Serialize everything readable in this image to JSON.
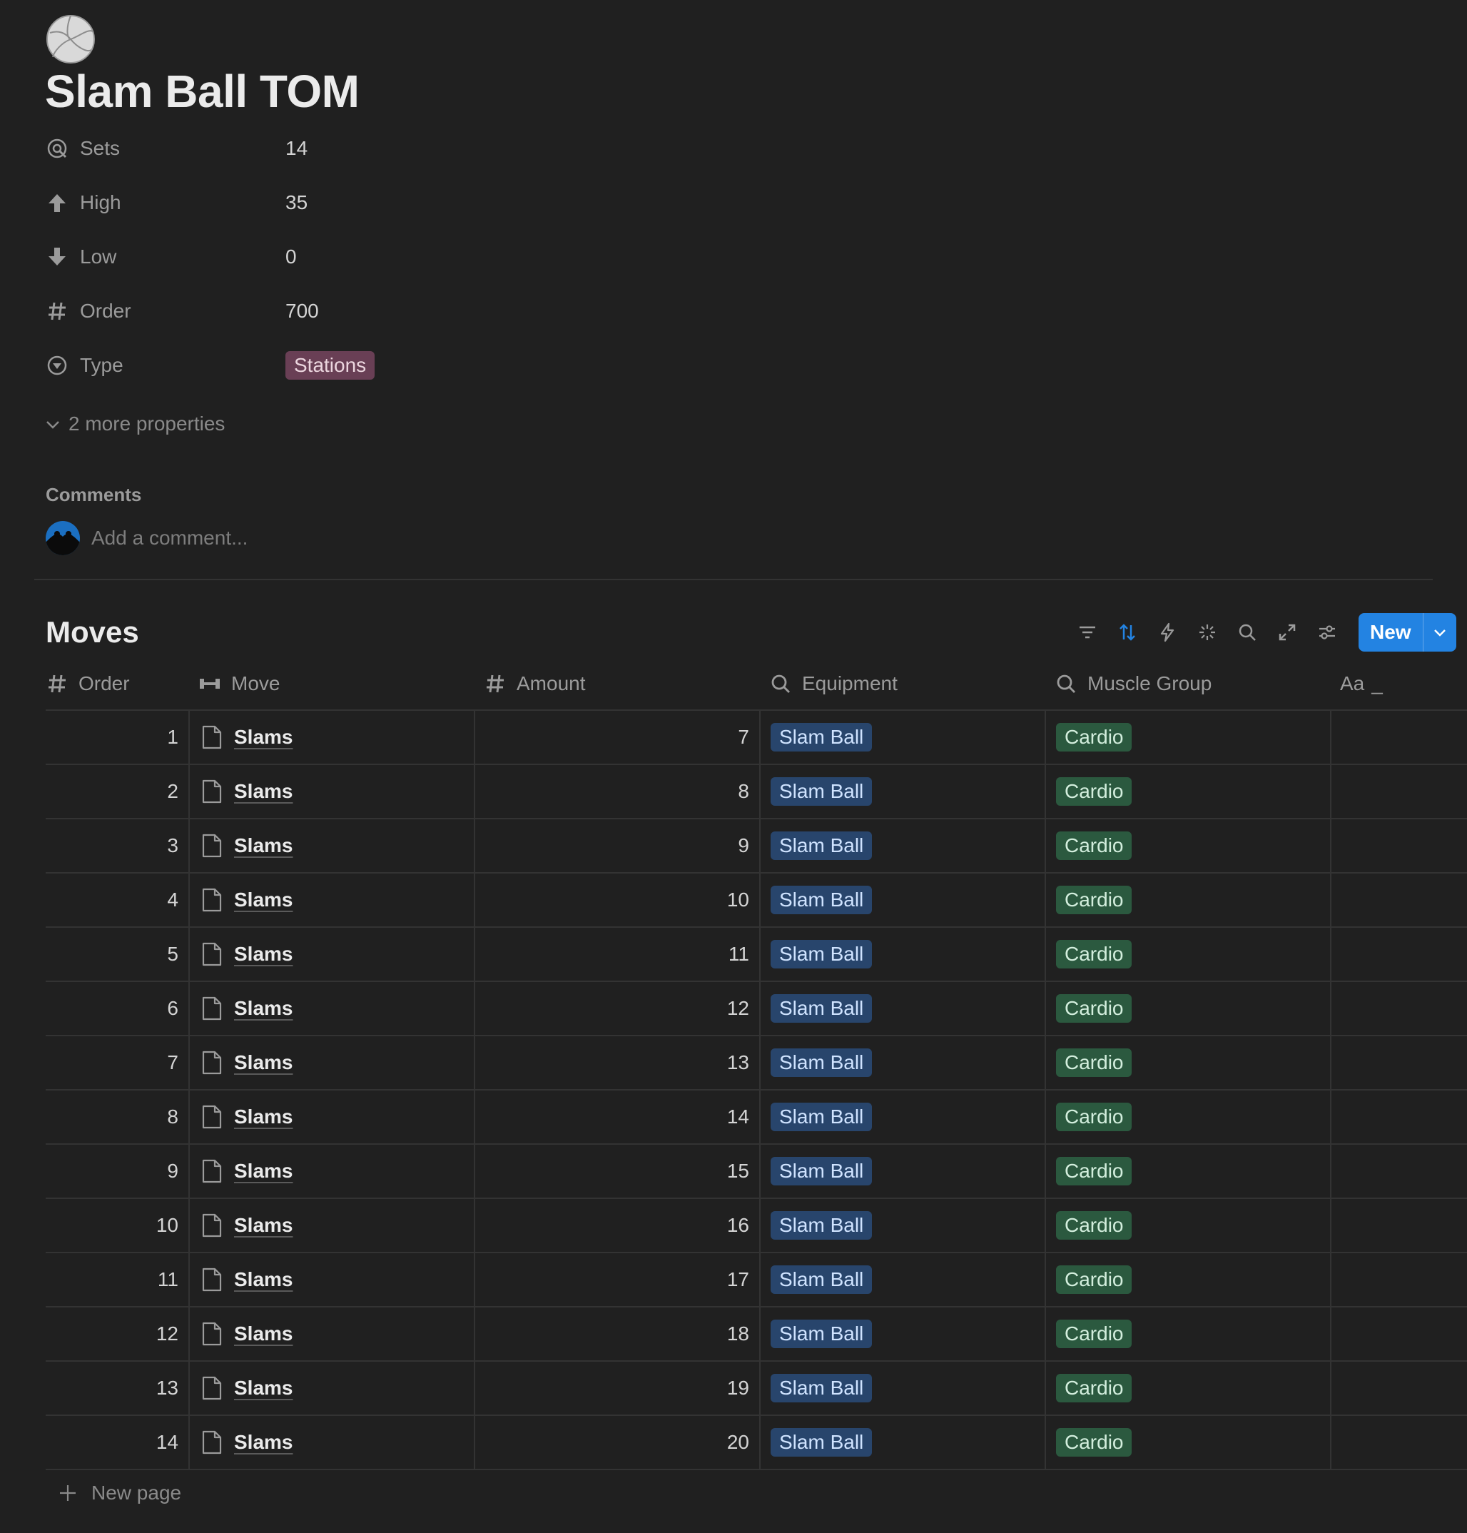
{
  "page": {
    "icon": "volleyball-icon",
    "title": "Slam Ball TOM"
  },
  "properties": [
    {
      "icon": "sets-icon",
      "name": "Sets",
      "value": "14"
    },
    {
      "icon": "arrow-up-icon",
      "name": "High",
      "value": "35"
    },
    {
      "icon": "arrow-down-icon",
      "name": "Low",
      "value": "0"
    },
    {
      "icon": "hash-icon",
      "name": "Order",
      "value": "700"
    },
    {
      "icon": "select-icon",
      "name": "Type",
      "value": "Stations"
    }
  ],
  "more_properties": "2 more properties",
  "comments": {
    "label": "Comments",
    "placeholder": "Add a comment..."
  },
  "database": {
    "title": "Moves",
    "new_label": "New",
    "toolbar_icons": [
      "filter-icon",
      "sort-icon",
      "automation-icon",
      "ai-icon",
      "search-icon",
      "expand-icon",
      "settings-icon"
    ],
    "columns": [
      {
        "icon": "hash-icon",
        "label": "Order"
      },
      {
        "icon": "relation-icon",
        "label": "Move"
      },
      {
        "icon": "hash-icon",
        "label": "Amount"
      },
      {
        "icon": "search-icon",
        "label": "Equipment"
      },
      {
        "icon": "search-icon",
        "label": "Muscle Group"
      },
      {
        "icon": "text-icon",
        "label": "Aa"
      }
    ],
    "rows": [
      {
        "order": "1",
        "move": "Slams",
        "amount": "7",
        "equipment": "Slam Ball",
        "muscle": "Cardio"
      },
      {
        "order": "2",
        "move": "Slams",
        "amount": "8",
        "equipment": "Slam Ball",
        "muscle": "Cardio"
      },
      {
        "order": "3",
        "move": "Slams",
        "amount": "9",
        "equipment": "Slam Ball",
        "muscle": "Cardio"
      },
      {
        "order": "4",
        "move": "Slams",
        "amount": "10",
        "equipment": "Slam Ball",
        "muscle": "Cardio"
      },
      {
        "order": "5",
        "move": "Slams",
        "amount": "11",
        "equipment": "Slam Ball",
        "muscle": "Cardio"
      },
      {
        "order": "6",
        "move": "Slams",
        "amount": "12",
        "equipment": "Slam Ball",
        "muscle": "Cardio"
      },
      {
        "order": "7",
        "move": "Slams",
        "amount": "13",
        "equipment": "Slam Ball",
        "muscle": "Cardio"
      },
      {
        "order": "8",
        "move": "Slams",
        "amount": "14",
        "equipment": "Slam Ball",
        "muscle": "Cardio"
      },
      {
        "order": "9",
        "move": "Slams",
        "amount": "15",
        "equipment": "Slam Ball",
        "muscle": "Cardio"
      },
      {
        "order": "10",
        "move": "Slams",
        "amount": "16",
        "equipment": "Slam Ball",
        "muscle": "Cardio"
      },
      {
        "order": "11",
        "move": "Slams",
        "amount": "17",
        "equipment": "Slam Ball",
        "muscle": "Cardio"
      },
      {
        "order": "12",
        "move": "Slams",
        "amount": "18",
        "equipment": "Slam Ball",
        "muscle": "Cardio"
      },
      {
        "order": "13",
        "move": "Slams",
        "amount": "19",
        "equipment": "Slam Ball",
        "muscle": "Cardio"
      },
      {
        "order": "14",
        "move": "Slams",
        "amount": "20",
        "equipment": "Slam Ball",
        "muscle": "Cardio"
      }
    ],
    "new_page_label": "New page"
  },
  "colors": {
    "background": "#202020",
    "accent": "#2383e2",
    "tag_stations": "#693f55",
    "tag_equipment": "#28456c",
    "tag_muscle": "#2b593f"
  }
}
